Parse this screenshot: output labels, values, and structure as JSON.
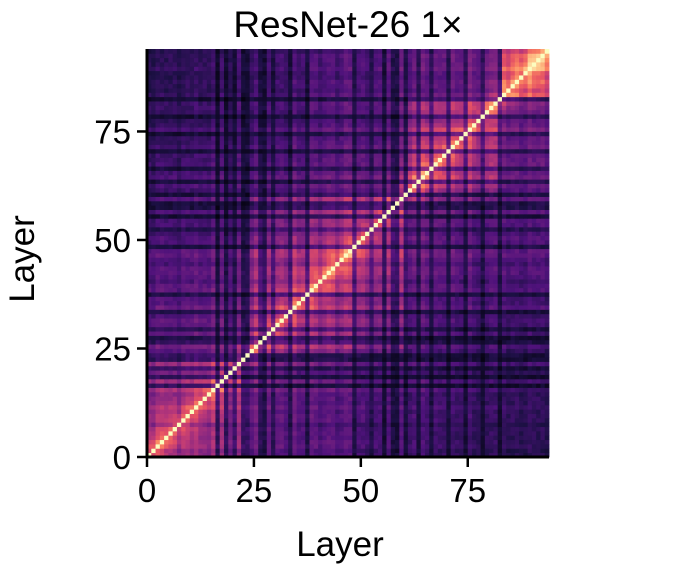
{
  "chart_data": {
    "type": "heatmap",
    "title": "ResNet-26 1×",
    "xlabel": "Layer",
    "ylabel": "Layer",
    "n": 94,
    "xlim": [
      0,
      94
    ],
    "ylim": [
      0,
      94
    ],
    "xticks": [
      0,
      25,
      50,
      75
    ],
    "yticks": [
      0,
      25,
      50,
      75
    ],
    "colormap": "magma",
    "diagonal_value": 1.0,
    "block_structure": [
      {
        "layers": [
          0,
          23
        ],
        "level": 0.55
      },
      {
        "layers": [
          24,
          60
        ],
        "level": 0.6
      },
      {
        "layers": [
          61,
          82
        ],
        "level": 0.62
      },
      {
        "layers": [
          83,
          93
        ],
        "level": 0.75
      }
    ],
    "dark_layers": [
      16,
      18,
      20,
      22,
      23,
      26,
      27,
      29,
      33,
      37,
      48,
      52,
      55,
      57,
      58,
      60,
      63,
      66,
      70,
      74,
      78,
      82
    ]
  }
}
